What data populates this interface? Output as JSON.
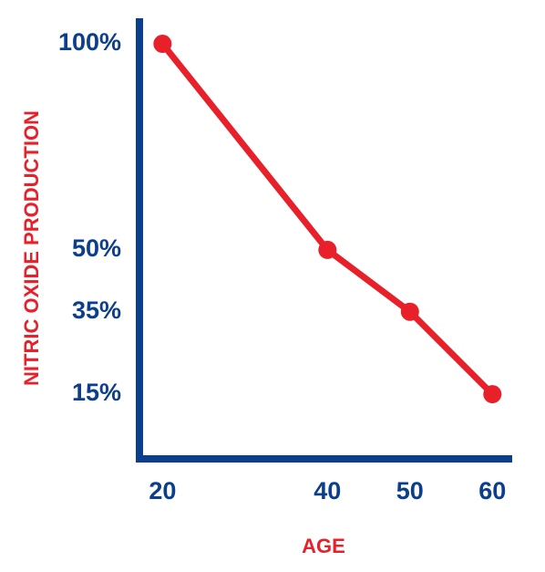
{
  "chart_data": {
    "type": "line",
    "x_label": "AGE",
    "y_label": "NITRIC OXIDE PRODUCTION",
    "x": [
      20,
      40,
      50,
      60
    ],
    "values": [
      100,
      50,
      35,
      15
    ],
    "color": "#e8202a",
    "axis_color": "#0c3e8e",
    "xlim": [
      17.2,
      62.4
    ],
    "ylim": [
      -0.7,
      106.2
    ],
    "xticks": [
      20,
      40,
      50,
      60
    ],
    "yticks": [
      {
        "value": 100,
        "label": "100%"
      },
      {
        "value": 50,
        "label": "50%"
      },
      {
        "value": 35,
        "label": "35%"
      },
      {
        "value": 15,
        "label": "15%"
      }
    ],
    "grid": false
  }
}
